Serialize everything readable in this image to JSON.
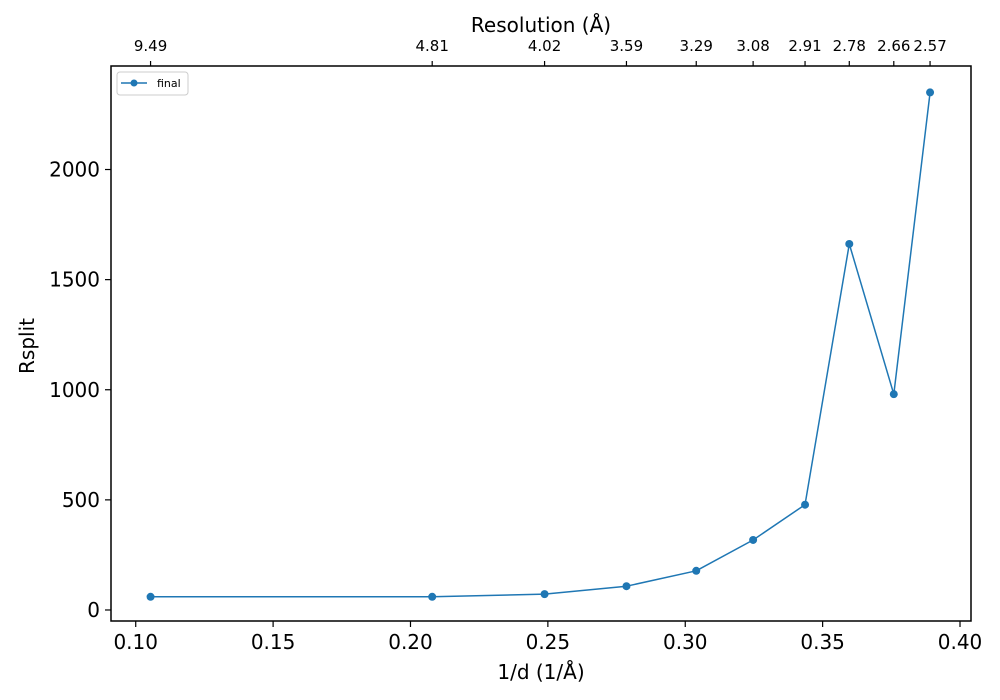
{
  "chart_data": {
    "type": "line",
    "xlabel": "1/d (1/Å)",
    "ylabel": "Rsplit",
    "top_xlabel": "Resolution (Å)",
    "xlim": [
      0.091,
      0.404
    ],
    "ylim": [
      -50,
      2470
    ],
    "xticks": [
      0.1,
      0.15,
      0.2,
      0.25,
      0.3,
      0.35,
      0.4
    ],
    "xtick_labels": [
      "0.10",
      "0.15",
      "0.20",
      "0.25",
      "0.30",
      "0.35",
      "0.40"
    ],
    "yticks": [
      0,
      500,
      1000,
      1500,
      2000
    ],
    "ytick_labels": [
      "0",
      "500",
      "1000",
      "1500",
      "2000"
    ],
    "top_ticks": [
      {
        "x": 0.1054,
        "label": "9.49"
      },
      {
        "x": 0.2079,
        "label": "4.81"
      },
      {
        "x": 0.2488,
        "label": "4.02"
      },
      {
        "x": 0.2786,
        "label": "3.59"
      },
      {
        "x": 0.304,
        "label": "3.29"
      },
      {
        "x": 0.3247,
        "label": "3.08"
      },
      {
        "x": 0.3436,
        "label": "2.91"
      },
      {
        "x": 0.3597,
        "label": "2.78"
      },
      {
        "x": 0.3759,
        "label": "2.66"
      },
      {
        "x": 0.3891,
        "label": "2.57"
      }
    ],
    "grid": false,
    "legend": "upper-left",
    "series": [
      {
        "name": "final",
        "color": "#1f77b4",
        "x": [
          0.1054,
          0.2079,
          0.2488,
          0.2786,
          0.304,
          0.3247,
          0.3436,
          0.3597,
          0.3759,
          0.3891
        ],
        "y": [
          60,
          60,
          72,
          108,
          178,
          318,
          478,
          1662,
          980,
          2350
        ]
      }
    ]
  }
}
